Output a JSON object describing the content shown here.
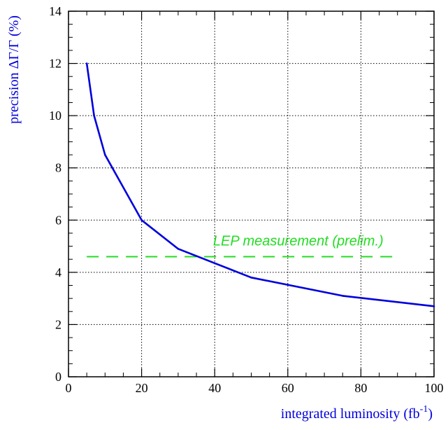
{
  "chart_data": {
    "type": "line",
    "xlabel": "integrated luminosity (fb",
    "xlabel_sup": "-1",
    "xlabel_close": ")",
    "ylabel": "precision ΔΓ/Γ (%)",
    "xlim": [
      0,
      100
    ],
    "ylim": [
      0,
      14
    ],
    "xticks": [
      "0",
      "20",
      "40",
      "60",
      "80",
      "100"
    ],
    "yticks": [
      "0",
      "2",
      "4",
      "6",
      "8",
      "10",
      "12",
      "14"
    ],
    "grid": true,
    "series": [
      {
        "color": "#0000dd",
        "x": [
          5,
          7,
          10,
          20,
          30,
          50,
          75,
          100
        ],
        "y": [
          12.0,
          10.0,
          8.5,
          6.0,
          4.9,
          3.8,
          3.1,
          2.7
        ]
      }
    ],
    "reference": {
      "label": "LEP measurement (prelim.)",
      "y": 4.6,
      "x_range": [
        5,
        90
      ],
      "color": "#22dd22"
    },
    "colors": {
      "axis_title": "#0000dd",
      "curve": "#0000dd",
      "reference": "#22dd22"
    }
  }
}
